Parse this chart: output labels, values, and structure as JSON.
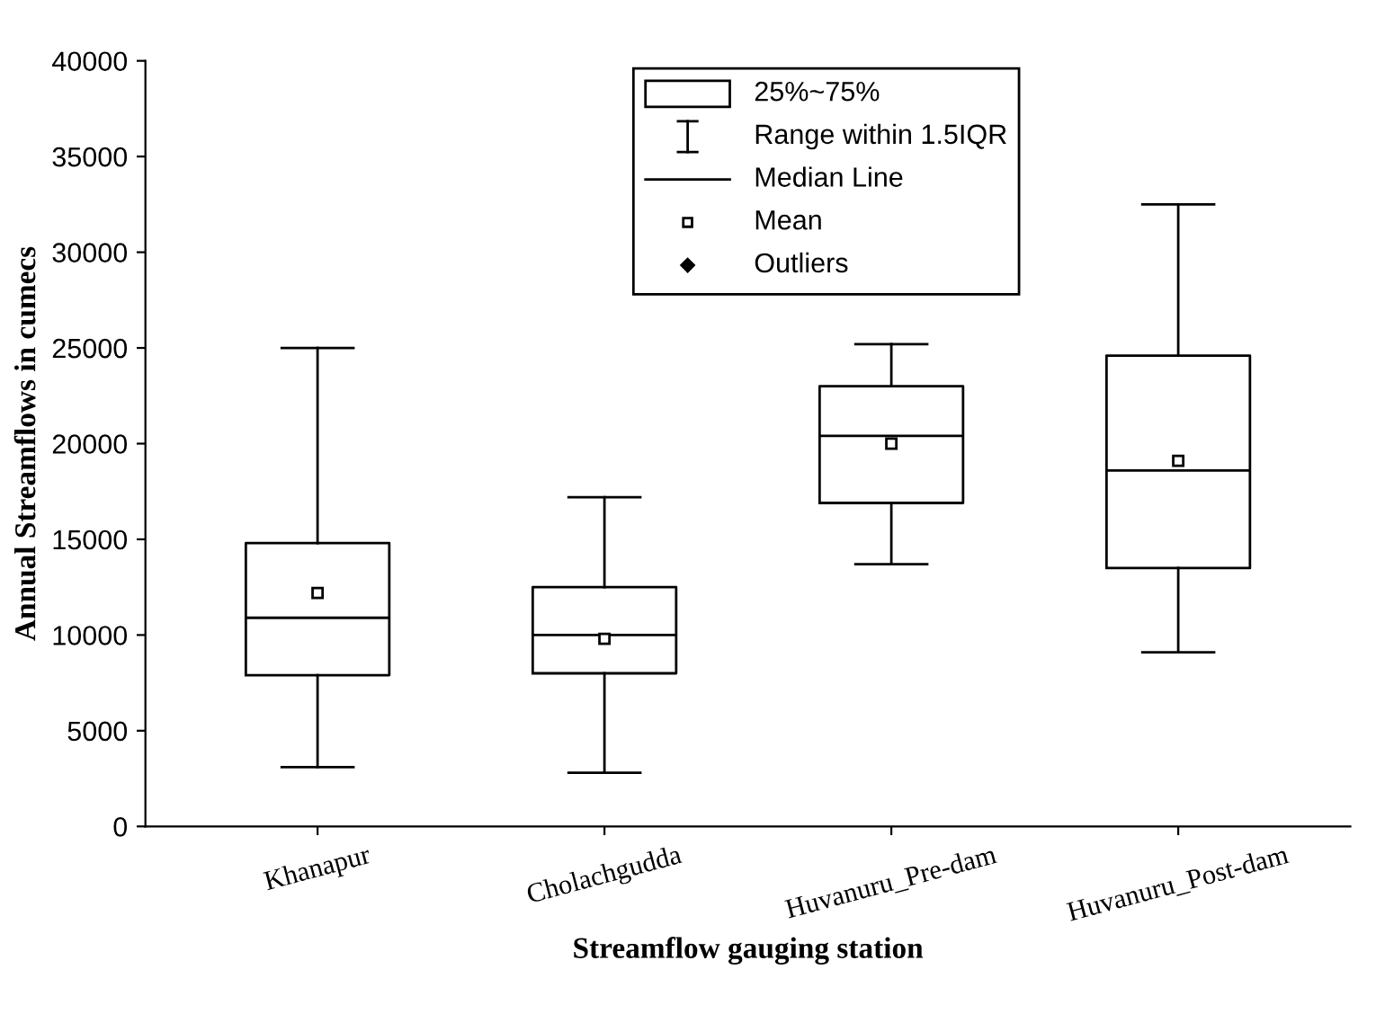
{
  "chart_data": {
    "type": "box",
    "xlabel": "Streamflow gauging station",
    "ylabel": "Annual Streamflows in cumecs",
    "categories": [
      "Khanapur",
      "Cholachgudda",
      "Huvanuru_Pre-dam",
      "Huvanuru_Post-dam"
    ],
    "boxes": [
      {
        "low": 3100,
        "q1": 7900,
        "median": 10900,
        "q3": 14800,
        "high": 25000,
        "mean": 12200
      },
      {
        "low": 2800,
        "q1": 8000,
        "median": 10000,
        "q3": 12500,
        "high": 17200,
        "mean": 9800
      },
      {
        "low": 13700,
        "q1": 16900,
        "median": 20400,
        "q3": 23000,
        "high": 25200,
        "mean": 20000
      },
      {
        "low": 9100,
        "q1": 13500,
        "median": 18600,
        "q3": 24600,
        "high": 32500,
        "mean": 19100
      }
    ],
    "ylim": [
      0,
      40000
    ],
    "yticks": [
      0,
      5000,
      10000,
      15000,
      20000,
      25000,
      30000,
      35000,
      40000
    ],
    "annotations": [
      "25%~75%",
      "Range within 1.5IQR",
      "Median Line",
      "Mean",
      "Outliers"
    ],
    "grid": false,
    "marker": "square",
    "color": "#000000"
  }
}
